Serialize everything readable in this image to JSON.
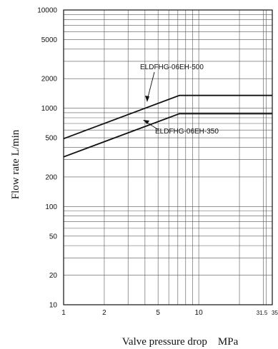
{
  "chart_data": {
    "type": "line",
    "xscale": "log",
    "yscale": "log",
    "xlim": [
      1,
      35
    ],
    "ylim": [
      10,
      10000
    ],
    "xticks": [
      "1",
      "2",
      "5",
      "10",
      "31.5",
      "35"
    ],
    "yticks": [
      "10",
      "20",
      "50",
      "100",
      "200",
      "500",
      "1000",
      "2000",
      "5000",
      "10000"
    ],
    "xlabel": "Valve pressure drop    MPa",
    "ylabel": "Flow rate    L/min",
    "grid": true,
    "series": [
      {
        "name": "ELDFHG-06EH-500",
        "x": [
          1,
          7.2,
          35
        ],
        "y": [
          490,
          1350,
          1350
        ]
      },
      {
        "name": "ELDFHG-06EH-350",
        "x": [
          1,
          7.2,
          35
        ],
        "y": [
          320,
          880,
          880
        ]
      }
    ]
  }
}
